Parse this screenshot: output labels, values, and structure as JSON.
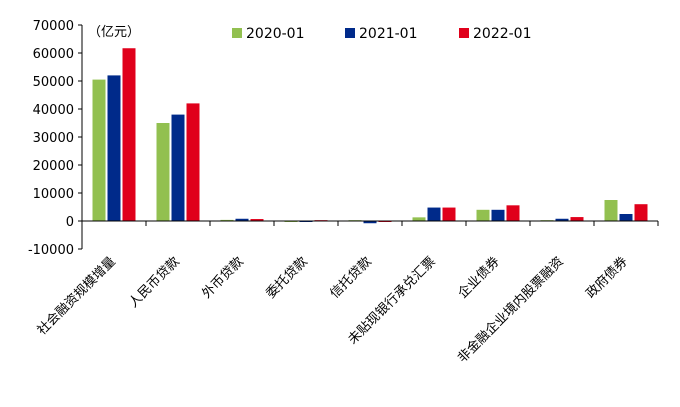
{
  "chart_data": {
    "type": "bar",
    "unit_label": "（亿元）",
    "categories": [
      "社会融资规模增量",
      "人民币贷款",
      "外币贷款",
      "委托贷款",
      "信托贷款",
      "未贴现银行承兑汇票",
      "企业债券",
      "非金融企业境内股票融资",
      "政府债券"
    ],
    "series": [
      {
        "name": "2020-01",
        "color": "#92c050",
        "values": [
          50500,
          35000,
          400,
          -200,
          300,
          1300,
          4000,
          300,
          7500
        ]
      },
      {
        "name": "2021-01",
        "color": "#002a8a",
        "values": [
          52000,
          38000,
          800,
          -100,
          -800,
          4800,
          4000,
          800,
          2500
        ]
      },
      {
        "name": "2022-01",
        "color": "#e0001b",
        "values": [
          61700,
          42000,
          700,
          300,
          -300,
          4800,
          5600,
          1400,
          6000
        ]
      }
    ],
    "yticks": [
      "70000",
      "60000",
      "50000",
      "40000",
      "30000",
      "20000",
      "10000",
      "0",
      "-10000"
    ],
    "ylim": [
      -10000,
      70000
    ],
    "grid": false,
    "legend_position": "top"
  }
}
